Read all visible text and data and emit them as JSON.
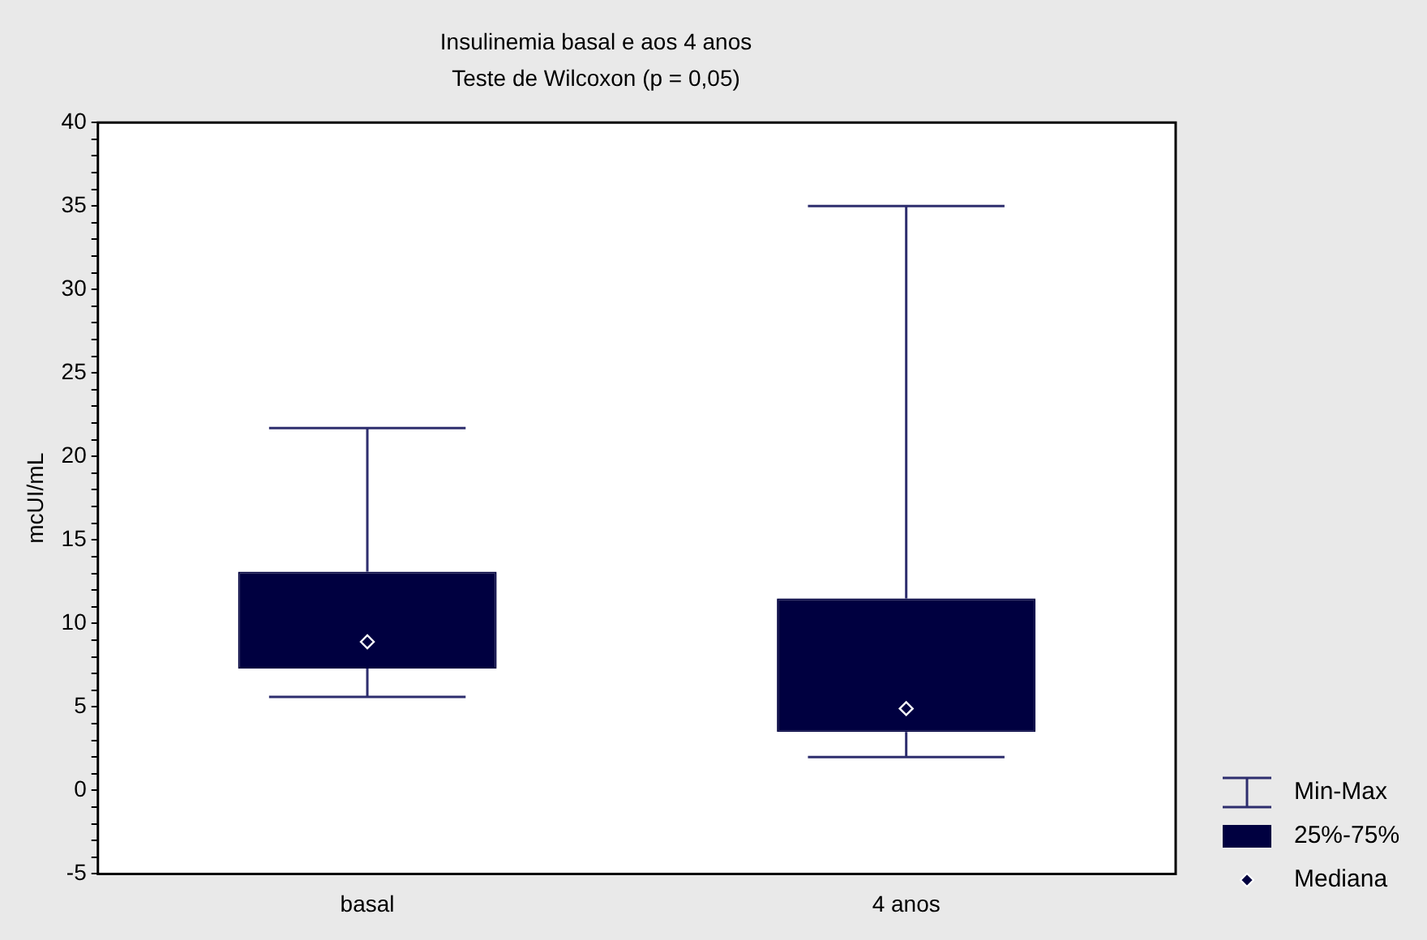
{
  "chart_data": {
    "type": "box",
    "title": "Insulinemia basal e aos 4 anos",
    "subtitle": "Teste de Wilcoxon (p = 0,05)",
    "ylabel": "mcUI/mL",
    "categories": [
      "basal",
      "4 anos"
    ],
    "color": "#000040",
    "boxes": [
      {
        "low": 5.6,
        "q1": 7.3,
        "median": 8.9,
        "q3": 13.1,
        "high": 21.7
      },
      {
        "low": 2.0,
        "q1": 3.5,
        "median": 4.9,
        "q3": 11.5,
        "high": 35.0
      }
    ],
    "ylim": [
      -5,
      40
    ],
    "yticks": [
      -5,
      {
        "value": -4,
        "label": null
      },
      {
        "value": -3,
        "label": null
      },
      {
        "value": -2,
        "label": null
      },
      {
        "value": -1,
        "label": null
      },
      0,
      {
        "value": 1,
        "label": null
      },
      {
        "value": 2,
        "label": null
      },
      {
        "value": 3,
        "label": null
      },
      {
        "value": 4,
        "label": null
      },
      5,
      {
        "value": 6,
        "label": null
      },
      {
        "value": 7,
        "label": null
      },
      {
        "value": 8,
        "label": null
      },
      {
        "value": 9,
        "label": null
      },
      10,
      {
        "value": 11,
        "label": null
      },
      {
        "value": 12,
        "label": null
      },
      {
        "value": 13,
        "label": null
      },
      {
        "value": 14,
        "label": null
      },
      15,
      {
        "value": 16,
        "label": null
      },
      {
        "value": 17,
        "label": null
      },
      {
        "value": 18,
        "label": null
      },
      {
        "value": 19,
        "label": null
      },
      20,
      {
        "value": 21,
        "label": null
      },
      {
        "value": 22,
        "label": null
      },
      {
        "value": 23,
        "label": null
      },
      {
        "value": 24,
        "label": null
      },
      25,
      {
        "value": 26,
        "label": null
      },
      {
        "value": 27,
        "label": null
      },
      {
        "value": 28,
        "label": null
      },
      {
        "value": 29,
        "label": null
      },
      30,
      {
        "value": 31,
        "label": null
      },
      {
        "value": 32,
        "label": null
      },
      {
        "value": 33,
        "label": null
      },
      {
        "value": 34,
        "label": null
      },
      35,
      {
        "value": 36,
        "label": null
      },
      {
        "value": 37,
        "label": null
      },
      {
        "value": 38,
        "label": null
      },
      {
        "value": 39,
        "label": null
      },
      40
    ],
    "marker": "diamond",
    "annotations": [
      "Min-Max",
      "25%-75%",
      "Mediana"
    ]
  }
}
